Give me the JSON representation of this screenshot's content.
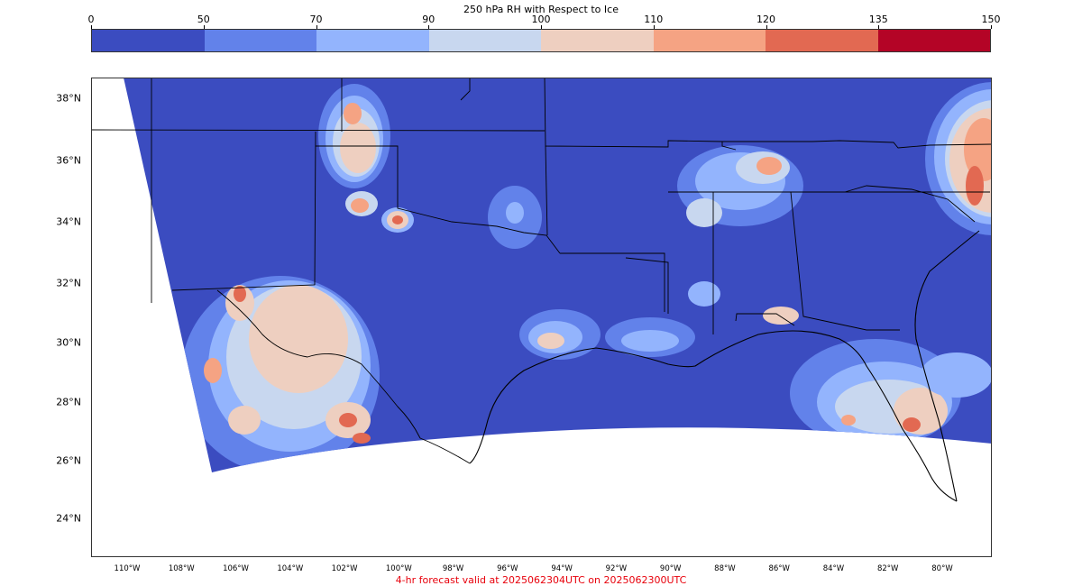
{
  "colorbar": {
    "title": "250 hPa RH with Respect to Ice",
    "levels": [
      "0",
      "50",
      "70",
      "90",
      "100",
      "110",
      "120",
      "135",
      "150"
    ],
    "colors": [
      "#3b4cc0",
      "#6282ea",
      "#93b4fd",
      "#c8d7ef",
      "#eecfc0",
      "#f5a383",
      "#e26952",
      "#b40426"
    ]
  },
  "map": {
    "lat_labels": [
      "38°N",
      "36°N",
      "34°N",
      "32°N",
      "30°N",
      "28°N",
      "26°N",
      "24°N"
    ],
    "lon_labels": [
      "110°W",
      "108°W",
      "106°W",
      "104°W",
      "102°W",
      "100°W",
      "98°W",
      "96°W",
      "94°W",
      "92°W",
      "90°W",
      "88°W",
      "86°W",
      "84°W",
      "82°W",
      "80°W"
    ]
  },
  "footer": {
    "text": "4-hr forecast valid at 2025062304UTC on 2025062300UTC"
  }
}
